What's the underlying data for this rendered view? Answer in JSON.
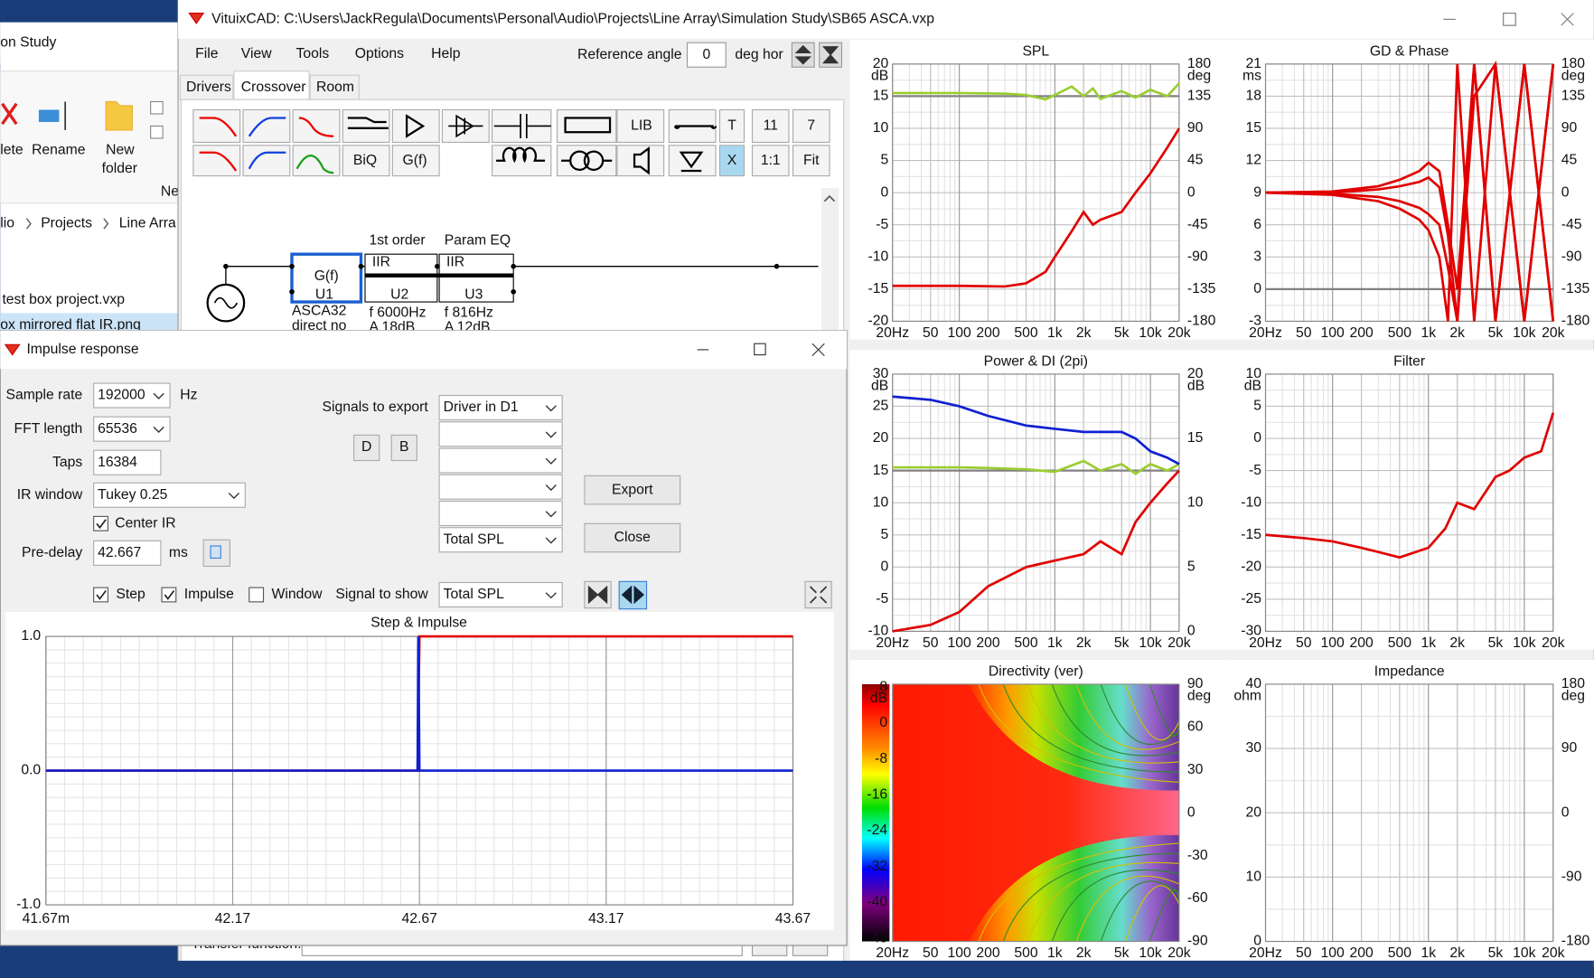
{
  "explorer": {
    "location": "on Study",
    "ribbon": [
      "lete",
      "Rename",
      "New",
      "folder",
      "Ne"
    ],
    "breadcrumb": [
      "lio",
      "Projects",
      "Line Arra"
    ],
    "files": [
      "test box project.vxp",
      "ox mirrored flat IR.png"
    ]
  },
  "main_window": {
    "title": "VituixCAD: C:\\Users\\JackRegula\\Documents\\Personal\\Audio\\Projects\\Line Array\\Simulation Study\\SB65 ASCA.vxp",
    "menu": [
      "File",
      "View",
      "Tools",
      "Options",
      "Help"
    ],
    "reference_angle_label": "Reference angle",
    "reference_angle": "0",
    "reference_unit": "deg hor",
    "tabs": [
      "Drivers",
      "Crossover",
      "Room"
    ],
    "toolbar": [
      "LIB",
      "T",
      "11",
      "7",
      "BiQ",
      "G(f)",
      "X",
      "1:1",
      "Fit"
    ],
    "schematic": [
      "G(f)",
      "U1",
      "ASCA32",
      "direct no",
      "1st order",
      "IIR",
      "U2",
      "f  6000Hz",
      "A  18dB",
      "Param EQ",
      "IIR",
      "U3",
      "f  816Hz",
      "A  12dB"
    ],
    "transfer_label": "Transfer function:"
  },
  "plots": [
    {
      "type": "line",
      "title": "SPL",
      "unit": "dB",
      "unit2": "deg",
      "xlim": [
        20,
        20000
      ],
      "log_x": true,
      "xticks": [
        {
          "value": 20,
          "label": "20Hz"
        },
        50,
        100,
        200,
        500,
        {
          "value": 1000,
          "label": "1k"
        },
        {
          "value": 2000,
          "label": "2k"
        },
        {
          "value": 5000,
          "label": "5k"
        },
        {
          "value": 10000,
          "label": "10k"
        },
        {
          "value": 20000,
          "label": "20k"
        }
      ],
      "ylim": [
        -20,
        20
      ],
      "yticks": [
        20,
        15,
        10,
        5,
        0,
        -5,
        -10,
        -15,
        -20
      ],
      "y2lim": [
        -180,
        180
      ],
      "y2ticks": [
        180,
        135,
        90,
        45,
        0,
        -45,
        -90,
        -135,
        -180
      ],
      "x": [
        20,
        100,
        300,
        500,
        800,
        1000,
        1500,
        2000,
        2500,
        3000,
        5000,
        7000,
        10000,
        15000,
        20000
      ],
      "series": [
        {
          "color": "#808080",
          "values": [
            15,
            15,
            15,
            15,
            15,
            15,
            15,
            15,
            15,
            15,
            15,
            15,
            15,
            15,
            15
          ]
        },
        {
          "color": "#9acd32",
          "values": [
            15.5,
            15.5,
            15.4,
            15.2,
            14.5,
            15.2,
            16.5,
            15,
            16.2,
            14.6,
            15.8,
            14.8,
            16,
            15,
            17
          ]
        },
        {
          "color": "#e00000",
          "values": [
            -14.5,
            -14.5,
            -14.6,
            -14.1,
            -12.3,
            -10,
            -6,
            -3,
            -5,
            -4.2,
            -3,
            0,
            3,
            7,
            10
          ]
        }
      ]
    },
    {
      "type": "line",
      "title": "GD & Phase",
      "unit": "ms",
      "unit2": "deg",
      "xlim": [
        20,
        20000
      ],
      "log_x": true,
      "xticks": [
        {
          "value": 20,
          "label": "20Hz"
        },
        50,
        100,
        200,
        500,
        {
          "value": 1000,
          "label": "1k"
        },
        {
          "value": 2000,
          "label": "2k"
        },
        {
          "value": 5000,
          "label": "5k"
        },
        {
          "value": 10000,
          "label": "10k"
        },
        {
          "value": 20000,
          "label": "20k"
        }
      ],
      "ylim": [
        -3,
        21
      ],
      "yticks": [
        21,
        18,
        15,
        12,
        9,
        6,
        3,
        0,
        -3
      ],
      "y2lim": [
        -180,
        180
      ],
      "y2ticks": [
        180,
        135,
        90,
        45,
        0,
        -45,
        -90,
        -135,
        -180
      ],
      "x": [
        20,
        100,
        300,
        500,
        800,
        1000,
        1300,
        1600,
        2000,
        3000,
        5000,
        10000,
        20000
      ],
      "series": [
        {
          "color": "#808080",
          "values": [
            0,
            0,
            0,
            0,
            0,
            0,
            0,
            0,
            0,
            0,
            0,
            0,
            0
          ]
        },
        {
          "color": "#e00000",
          "values": [
            9,
            9.1,
            9.6,
            10.2,
            11,
            11.8,
            11,
            6,
            0,
            21,
            -3,
            21,
            -3
          ]
        },
        {
          "color": "#e00000",
          "values": [
            9,
            9,
            9.3,
            9.6,
            10,
            10.4,
            9.5,
            5,
            -3,
            18,
            21,
            -3,
            21
          ]
        },
        {
          "color": "#e00000",
          "values": [
            9,
            8.9,
            8.6,
            8.2,
            7.6,
            7,
            6,
            2,
            -3,
            21,
            -3,
            21,
            -3
          ]
        },
        {
          "color": "#e00000",
          "values": [
            9,
            8.8,
            8.2,
            7.5,
            6.5,
            5.5,
            3,
            -3,
            21,
            -3,
            21,
            -3,
            21
          ]
        }
      ]
    },
    {
      "type": "line",
      "title": "Power & DI (2pi)",
      "unit": "dB",
      "unit2": "dB",
      "xlim": [
        20,
        20000
      ],
      "log_x": true,
      "xticks": [
        {
          "value": 20,
          "label": "20Hz"
        },
        50,
        100,
        200,
        500,
        {
          "value": 1000,
          "label": "1k"
        },
        {
          "value": 2000,
          "label": "2k"
        },
        {
          "value": 5000,
          "label": "5k"
        },
        {
          "value": 10000,
          "label": "10k"
        },
        {
          "value": 20000,
          "label": "20k"
        }
      ],
      "ylim": [
        -10,
        30
      ],
      "yticks": [
        30,
        25,
        20,
        15,
        10,
        5,
        0,
        -5,
        -10
      ],
      "y2lim": [
        0,
        20
      ],
      "y2ticks": [
        20,
        15,
        10,
        5,
        0
      ],
      "x": [
        20,
        50,
        100,
        200,
        500,
        1000,
        2000,
        3000,
        5000,
        7000,
        10000,
        15000,
        20000
      ],
      "series": [
        {
          "color": "#808080",
          "values": [
            15,
            15,
            15,
            15,
            15,
            15,
            15,
            15,
            15,
            15,
            15,
            15,
            15
          ]
        },
        {
          "color": "#9acd32",
          "values": [
            15.5,
            15.5,
            15.5,
            15.4,
            15.2,
            14.8,
            16.5,
            15,
            16,
            14.5,
            16,
            15,
            16
          ]
        },
        {
          "color": "#1020d0",
          "values": [
            26.5,
            26,
            25,
            23.5,
            22,
            21.5,
            21,
            21,
            21,
            20,
            18,
            17,
            16
          ]
        },
        {
          "color": "#e00000",
          "values": [
            -10,
            -9,
            -7,
            -3,
            0,
            1,
            2,
            4,
            2,
            7,
            10,
            13,
            15
          ]
        }
      ]
    },
    {
      "type": "line",
      "title": "Filter",
      "unit": "dB",
      "xlim": [
        20,
        20000
      ],
      "log_x": true,
      "xticks": [
        {
          "value": 20,
          "label": "20Hz"
        },
        50,
        100,
        200,
        500,
        {
          "value": 1000,
          "label": "1k"
        },
        {
          "value": 2000,
          "label": "2k"
        },
        {
          "value": 5000,
          "label": "5k"
        },
        {
          "value": 10000,
          "label": "10k"
        },
        {
          "value": 20000,
          "label": "20k"
        }
      ],
      "ylim": [
        -30,
        10
      ],
      "yticks": [
        10,
        5,
        0,
        -5,
        -10,
        -15,
        -20,
        -25,
        -30
      ],
      "x": [
        20,
        50,
        100,
        200,
        500,
        1000,
        1500,
        2000,
        3000,
        5000,
        7000,
        10000,
        15000,
        20000
      ],
      "series": [
        {
          "color": "#e00000",
          "values": [
            -15,
            -15.5,
            -16,
            -17,
            -18.5,
            -17,
            -14,
            -10,
            -11,
            -6,
            -5,
            -3,
            -2,
            4
          ]
        }
      ]
    },
    {
      "type": "heatmap",
      "title": "Directivity (ver)",
      "unit": "dB",
      "unit2": "deg",
      "xlim": [
        20,
        20000
      ],
      "log_x": true,
      "xticks": [
        {
          "value": 20,
          "label": "20Hz"
        },
        50,
        100,
        200,
        500,
        {
          "value": 1000,
          "label": "1k"
        },
        {
          "value": 2000,
          "label": "2k"
        },
        {
          "value": 5000,
          "label": "5k"
        },
        {
          "value": 10000,
          "label": "10k"
        },
        {
          "value": 20000,
          "label": "20k"
        }
      ],
      "colorbar_lim": [
        -48,
        8
      ],
      "colorbar_ticks": [
        8,
        0,
        -8,
        -16,
        -24,
        -32,
        -40,
        -48
      ],
      "y2lim": [
        -90,
        90
      ],
      "y2ticks": [
        90,
        60,
        30,
        0,
        -30,
        -60,
        -90
      ]
    },
    {
      "type": "line",
      "title": "Impedance",
      "unit": "ohm",
      "unit2": "deg",
      "xlim": [
        20,
        20000
      ],
      "log_x": true,
      "xticks": [
        {
          "value": 20,
          "label": "20Hz"
        },
        50,
        100,
        200,
        500,
        {
          "value": 1000,
          "label": "1k"
        },
        {
          "value": 2000,
          "label": "2k"
        },
        {
          "value": 5000,
          "label": "5k"
        },
        {
          "value": 10000,
          "label": "10k"
        },
        {
          "value": 20000,
          "label": "20k"
        }
      ],
      "ylim": [
        0,
        40
      ],
      "yticks": [
        40,
        30,
        20,
        10,
        0
      ],
      "y2lim": [
        -180,
        180
      ],
      "y2ticks": [
        180,
        90,
        0,
        -90,
        -180
      ],
      "x": [],
      "series": []
    }
  ],
  "dialog": {
    "title": "Impulse response",
    "sample_rate_label": "Sample rate",
    "sample_rate": "192000",
    "sample_rate_unit": "Hz",
    "fft_label": "FFT length",
    "fft": "65536",
    "taps_label": "Taps",
    "taps": "16384",
    "window_label": "IR window",
    "window": "Tukey 0.25",
    "center_ir": "Center IR",
    "predelay_label": "Pre-delay",
    "predelay": "42.667",
    "predelay_unit": "ms",
    "export_label": "Signals to export",
    "driver_buttons": [
      "D",
      "B"
    ],
    "export_signals": [
      "Driver in D1",
      "Total SPL"
    ],
    "export_button": "Export",
    "close_button": "Close",
    "show_step": "Step",
    "show_impulse": "Impulse",
    "show_window": "Window",
    "signal_show_label": "Signal to show",
    "signal_show": "Total SPL",
    "chart": {
      "type": "line",
      "title": "Step & Impulse",
      "xlim": [
        41.67,
        43.67
      ],
      "xticks": [
        {
          "value": 41.67,
          "label": "41.67m"
        },
        42.17,
        42.67,
        43.17,
        43.67
      ],
      "ylim": [
        -1,
        1
      ],
      "yticks": [
        {
          "value": 1,
          "label": "1.0"
        },
        {
          "value": 0,
          "label": "0.0"
        },
        {
          "value": -1,
          "label": "-1.0"
        }
      ],
      "series": [
        {
          "name": "Step",
          "color": "#e00000",
          "x": [
            41.67,
            42.665,
            42.67,
            43.67
          ],
          "values": [
            0,
            0,
            1,
            1
          ]
        },
        {
          "name": "Impulse",
          "color": "#1020d0",
          "x": [
            41.67,
            42.665,
            42.667,
            42.67,
            43.67
          ],
          "values": [
            0,
            0,
            1,
            0,
            0
          ]
        }
      ]
    }
  }
}
